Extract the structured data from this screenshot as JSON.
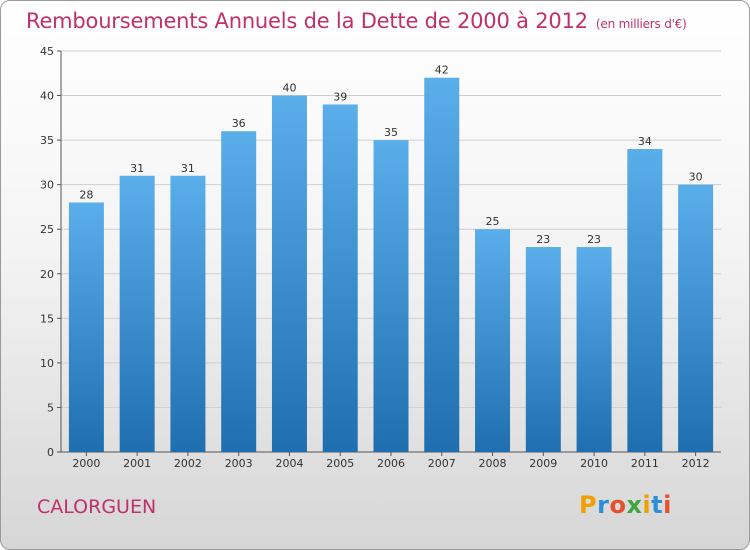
{
  "header": {
    "title": "Remboursements Annuels de la Dette de 2000 à 2012",
    "unit": "(en milliers d'€)"
  },
  "footer": {
    "commune": "CALORGUEN",
    "logo": "Proxiti"
  },
  "colors": {
    "title": "#c0306a",
    "bar_top": "#5aaeea",
    "bar_bottom": "#1f6fb0",
    "grid": "#cfcfcf"
  },
  "chart_data": {
    "type": "bar",
    "title": "Remboursements Annuels de la Dette de 2000 à 2012",
    "xlabel": "",
    "ylabel": "",
    "categories": [
      "2000",
      "2001",
      "2002",
      "2003",
      "2004",
      "2005",
      "2006",
      "2007",
      "2008",
      "2009",
      "2010",
      "2011",
      "2012"
    ],
    "values": [
      28,
      31,
      31,
      36,
      40,
      39,
      35,
      42,
      25,
      23,
      23,
      34,
      30
    ],
    "ylim": [
      0,
      45
    ],
    "yticks": [
      0,
      5,
      10,
      15,
      20,
      25,
      30,
      35,
      40,
      45
    ],
    "grid": true,
    "legend": "none"
  }
}
